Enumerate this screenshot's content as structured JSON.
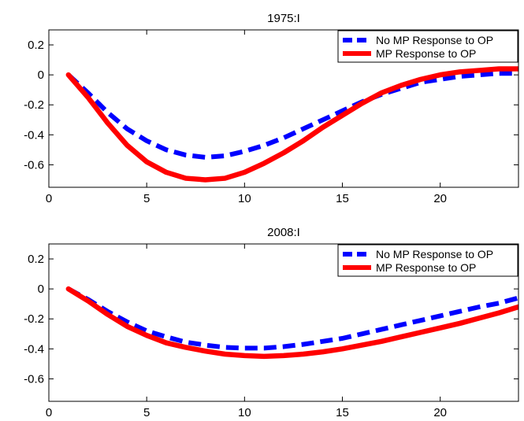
{
  "chart_data": [
    {
      "type": "line",
      "title": "1975:I",
      "xlabel": "",
      "ylabel": "",
      "xlim": [
        0,
        24
      ],
      "ylim": [
        -0.75,
        0.3
      ],
      "xticks": [
        0,
        5,
        10,
        15,
        20
      ],
      "yticks": [
        0.2,
        0,
        -0.2,
        -0.4,
        -0.6
      ],
      "ytick_labels": [
        "0.2",
        "0",
        "-0.2",
        "-0.4",
        "-0.6"
      ],
      "grid": false,
      "legend": "top-right",
      "x": [
        1,
        2,
        3,
        4,
        5,
        6,
        7,
        8,
        9,
        10,
        11,
        12,
        13,
        14,
        15,
        16,
        17,
        18,
        19,
        20,
        21,
        22,
        23,
        24
      ],
      "series": [
        {
          "name": "No MP Response to OP",
          "color": "#0000ff",
          "style": "dashed",
          "values": [
            0.0,
            -0.12,
            -0.25,
            -0.36,
            -0.44,
            -0.5,
            -0.535,
            -0.55,
            -0.54,
            -0.51,
            -0.47,
            -0.42,
            -0.36,
            -0.3,
            -0.24,
            -0.18,
            -0.13,
            -0.09,
            -0.05,
            -0.03,
            -0.01,
            0.0,
            0.01,
            0.01
          ]
        },
        {
          "name": "MP Response to OP",
          "color": "#ff0000",
          "style": "solid",
          "values": [
            0.0,
            -0.15,
            -0.32,
            -0.47,
            -0.58,
            -0.65,
            -0.69,
            -0.7,
            -0.69,
            -0.65,
            -0.59,
            -0.52,
            -0.44,
            -0.35,
            -0.27,
            -0.19,
            -0.12,
            -0.07,
            -0.03,
            0.0,
            0.02,
            0.03,
            0.04,
            0.04
          ]
        }
      ]
    },
    {
      "type": "line",
      "title": "2008:I",
      "xlabel": "",
      "ylabel": "",
      "xlim": [
        0,
        24
      ],
      "ylim": [
        -0.75,
        0.3
      ],
      "xticks": [
        0,
        5,
        10,
        15,
        20
      ],
      "yticks": [
        0.2,
        0,
        -0.2,
        -0.4,
        -0.6
      ],
      "ytick_labels": [
        "0.2",
        "0",
        "-0.2",
        "-0.4",
        "-0.6"
      ],
      "grid": false,
      "legend": "top-right",
      "x": [
        1,
        2,
        3,
        4,
        5,
        6,
        7,
        8,
        9,
        10,
        11,
        12,
        13,
        14,
        15,
        16,
        17,
        18,
        19,
        20,
        21,
        22,
        23,
        24
      ],
      "series": [
        {
          "name": "No MP Response to OP",
          "color": "#0000ff",
          "style": "dashed",
          "values": [
            0.0,
            -0.07,
            -0.15,
            -0.22,
            -0.28,
            -0.32,
            -0.355,
            -0.375,
            -0.39,
            -0.395,
            -0.395,
            -0.385,
            -0.37,
            -0.35,
            -0.33,
            -0.3,
            -0.27,
            -0.24,
            -0.21,
            -0.18,
            -0.15,
            -0.12,
            -0.095,
            -0.06
          ]
        },
        {
          "name": "MP Response to OP",
          "color": "#ff0000",
          "style": "solid",
          "values": [
            0.0,
            -0.08,
            -0.17,
            -0.25,
            -0.31,
            -0.36,
            -0.39,
            -0.415,
            -0.435,
            -0.445,
            -0.45,
            -0.445,
            -0.435,
            -0.42,
            -0.4,
            -0.375,
            -0.35,
            -0.32,
            -0.29,
            -0.26,
            -0.23,
            -0.195,
            -0.16,
            -0.12
          ]
        }
      ]
    }
  ]
}
